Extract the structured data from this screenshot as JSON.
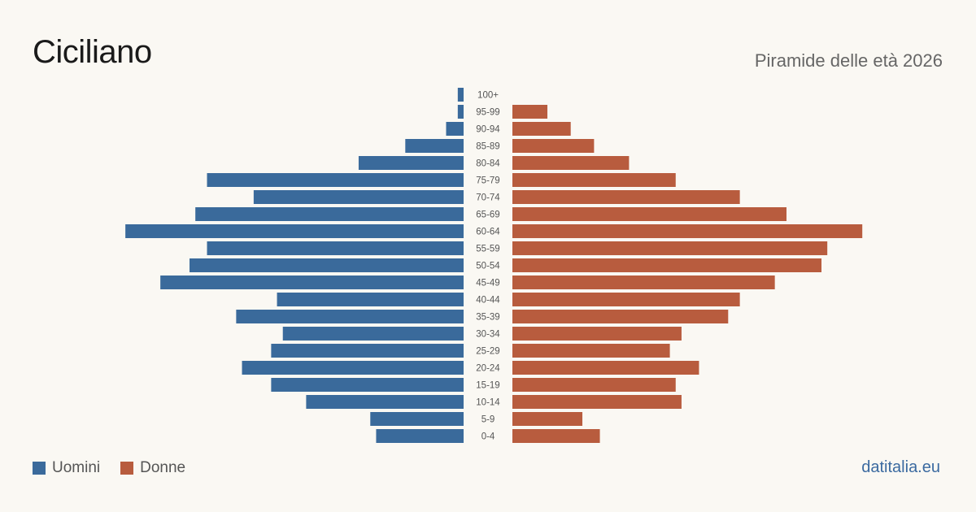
{
  "title": "Ciciliano",
  "subtitle": "Piramide delle età 2026",
  "brand": "datitalia.eu",
  "colors": {
    "men": "#3a6a9b",
    "women": "#b85c3e"
  },
  "legend": {
    "men_label": "Uomini",
    "women_label": "Donne"
  },
  "chart_data": {
    "type": "bar",
    "orientation": "horizontal-pyramid",
    "categories": [
      "100+",
      "95-99",
      "90-94",
      "85-89",
      "80-84",
      "75-79",
      "70-74",
      "65-69",
      "60-64",
      "55-59",
      "50-54",
      "45-49",
      "40-44",
      "35-39",
      "30-34",
      "25-29",
      "20-24",
      "15-19",
      "10-14",
      "5-9",
      "0-4"
    ],
    "series": [
      {
        "name": "Uomini",
        "values": [
          1,
          1,
          3,
          10,
          18,
          44,
          36,
          46,
          58,
          44,
          47,
          52,
          32,
          39,
          31,
          33,
          38,
          33,
          27,
          16,
          15
        ]
      },
      {
        "name": "Donne",
        "values": [
          0,
          6,
          10,
          14,
          20,
          28,
          39,
          47,
          60,
          54,
          53,
          45,
          39,
          37,
          29,
          27,
          32,
          28,
          29,
          12,
          15
        ]
      }
    ],
    "legend_position": "bottom-left",
    "grid": false
  }
}
